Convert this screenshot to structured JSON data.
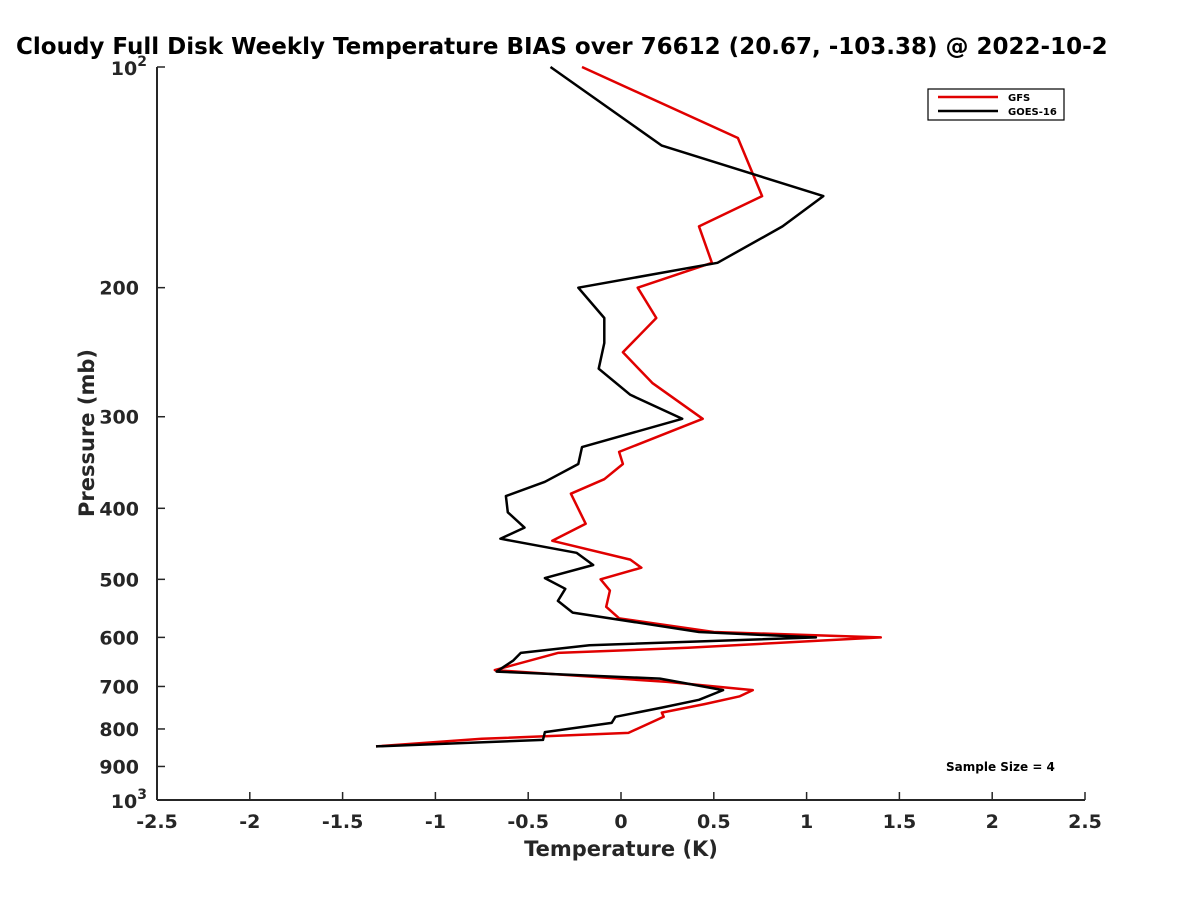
{
  "chart_data": {
    "type": "line",
    "title": "Cloudy Full Disk Weekly Temperature BIAS over 76612 (20.67, -103.38) @ 2022-10-2",
    "xlabel": "Temperature (K)",
    "ylabel": "Pressure (mb)",
    "xlim": [
      -2.5,
      2.5
    ],
    "ylim": [
      100,
      1000
    ],
    "y_scale": "log",
    "y_reversed": true,
    "grid": false,
    "legend_position": "top-right",
    "x_ticks": [
      -2.5,
      -2,
      -1.5,
      -1,
      -0.5,
      0,
      0.5,
      1,
      1.5,
      2,
      2.5
    ],
    "x_tick_labels": [
      "-2.5",
      "-2",
      "-1.5",
      "-1",
      "-0.5",
      "0",
      "0.5",
      "1",
      "1.5",
      "2",
      "2.5"
    ],
    "y_ticks": [
      200,
      300,
      400,
      500,
      600,
      700,
      800,
      900
    ],
    "y_tick_labels": [
      "200",
      "300",
      "400",
      "500",
      "600",
      "700",
      "800",
      "900"
    ],
    "y_end_labels": {
      "top": {
        "value": 100,
        "base": "10",
        "exp": "2"
      },
      "bottom": {
        "value": 1000,
        "base": "10",
        "exp": "3"
      }
    },
    "annotation": "Sample Size = 4",
    "series": [
      {
        "name": "GFS",
        "color": "#e00000",
        "points": [
          [
            -0.21,
            100
          ],
          [
            0.63,
            125
          ],
          [
            0.76,
            150
          ],
          [
            0.42,
            165
          ],
          [
            0.49,
            185
          ],
          [
            0.09,
            200
          ],
          [
            0.19,
            220
          ],
          [
            0.01,
            245
          ],
          [
            0.17,
            270
          ],
          [
            0.44,
            302
          ],
          [
            -0.01,
            335
          ],
          [
            0.01,
            348
          ],
          [
            -0.09,
            365
          ],
          [
            -0.27,
            382
          ],
          [
            -0.19,
            420
          ],
          [
            -0.37,
            443
          ],
          [
            0.05,
            470
          ],
          [
            0.11,
            482
          ],
          [
            -0.11,
            500
          ],
          [
            -0.06,
            518
          ],
          [
            -0.08,
            545
          ],
          [
            -0.01,
            565
          ],
          [
            0.5,
            590
          ],
          [
            1.4,
            600
          ],
          [
            0.36,
            620
          ],
          [
            -0.34,
            630
          ],
          [
            -0.68,
            665
          ],
          [
            0.25,
            690
          ],
          [
            0.71,
            708
          ],
          [
            0.64,
            722
          ],
          [
            0.45,
            740
          ],
          [
            0.22,
            760
          ],
          [
            0.23,
            770
          ],
          [
            0.04,
            810
          ],
          [
            -0.75,
            825
          ],
          [
            -1.32,
            845
          ]
        ]
      },
      {
        "name": "GOES-16",
        "color": "#000000",
        "points": [
          [
            -0.38,
            100
          ],
          [
            0.22,
            128
          ],
          [
            1.09,
            150
          ],
          [
            0.87,
            165
          ],
          [
            0.52,
            185
          ],
          [
            -0.23,
            200
          ],
          [
            -0.09,
            220
          ],
          [
            -0.09,
            238
          ],
          [
            -0.12,
            258
          ],
          [
            0.05,
            280
          ],
          [
            0.33,
            302
          ],
          [
            -0.21,
            330
          ],
          [
            -0.23,
            348
          ],
          [
            -0.41,
            368
          ],
          [
            -0.62,
            385
          ],
          [
            -0.61,
            405
          ],
          [
            -0.52,
            425
          ],
          [
            -0.65,
            440
          ],
          [
            -0.24,
            460
          ],
          [
            -0.15,
            478
          ],
          [
            -0.41,
            498
          ],
          [
            -0.3,
            515
          ],
          [
            -0.34,
            535
          ],
          [
            -0.26,
            555
          ],
          [
            0.42,
            590
          ],
          [
            1.05,
            600
          ],
          [
            -0.17,
            615
          ],
          [
            -0.54,
            630
          ],
          [
            -0.58,
            645
          ],
          [
            -0.67,
            668
          ],
          [
            0.21,
            683
          ],
          [
            0.55,
            708
          ],
          [
            0.42,
            730
          ],
          [
            0.22,
            748
          ],
          [
            -0.03,
            770
          ],
          [
            -0.05,
            785
          ],
          [
            -0.41,
            808
          ],
          [
            -0.42,
            828
          ],
          [
            -1.32,
            845
          ]
        ]
      }
    ]
  },
  "colors": {
    "axis": "#262626",
    "background": "#ffffff",
    "legend_border": "#000000"
  }
}
